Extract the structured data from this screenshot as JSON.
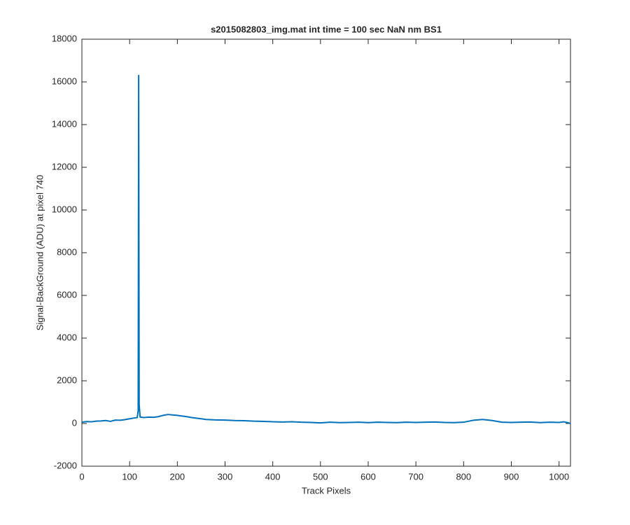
{
  "chart_data": {
    "type": "line",
    "title": "s2015082803_img.mat int time = 100 sec  NaN nm BS1",
    "x_label": "Track Pixels",
    "y_label": "Signal-BackGround (ADU) at pixel 740",
    "x": [
      0,
      10,
      20,
      30,
      40,
      50,
      60,
      70,
      80,
      90,
      100,
      110,
      116,
      118,
      119,
      120,
      122,
      130,
      140,
      150,
      160,
      170,
      180,
      190,
      200,
      210,
      220,
      230,
      240,
      250,
      260,
      280,
      300,
      320,
      340,
      360,
      380,
      400,
      420,
      440,
      460,
      480,
      500,
      520,
      540,
      560,
      580,
      600,
      620,
      640,
      660,
      680,
      700,
      720,
      740,
      760,
      780,
      800,
      820,
      840,
      860,
      880,
      900,
      920,
      940,
      960,
      980,
      1000,
      1010,
      1020,
      1024
    ],
    "series": [
      {
        "color": "#0072bd",
        "values": [
          60,
          90,
          80,
          110,
          120,
          140,
          100,
          160,
          150,
          180,
          220,
          260,
          280,
          600,
          16300,
          900,
          300,
          280,
          300,
          290,
          320,
          380,
          420,
          400,
          380,
          350,
          320,
          280,
          250,
          220,
          190,
          170,
          160,
          140,
          130,
          110,
          100,
          80,
          70,
          80,
          60,
          50,
          30,
          60,
          40,
          50,
          60,
          40,
          60,
          50,
          40,
          60,
          50,
          60,
          70,
          50,
          40,
          60,
          150,
          190,
          140,
          60,
          50,
          60,
          70,
          40,
          60,
          50,
          80,
          30,
          -10
        ]
      }
    ],
    "xlim": [
      0,
      1024
    ],
    "xticks": [
      0,
      100,
      200,
      300,
      400,
      500,
      600,
      700,
      800,
      900,
      1000
    ],
    "ylim": [
      -2000,
      18000
    ],
    "yticks": [
      -2000,
      0,
      2000,
      4000,
      6000,
      8000,
      10000,
      12000,
      14000,
      16000,
      18000
    ]
  }
}
